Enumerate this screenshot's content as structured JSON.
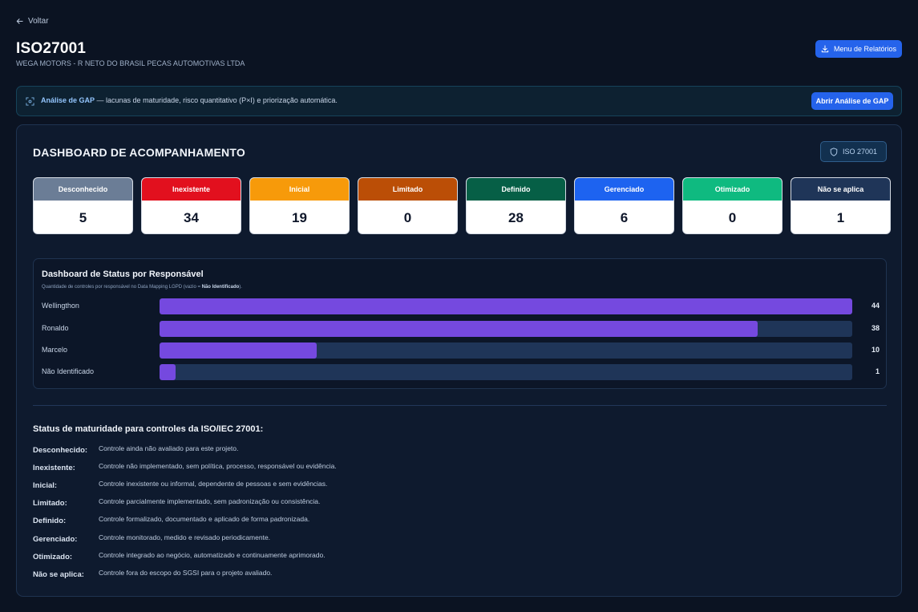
{
  "nav": {
    "back_label": "Voltar"
  },
  "header": {
    "title": "ISO27001",
    "subtitle": "WEGA MOTORS - R NETO DO BRASIL PECAS AUTOMOTIVAS LTDA",
    "report_button": "Menu de Relatórios"
  },
  "gap_banner": {
    "label": "Análise de GAP",
    "text": " — lacunas de maturidade, risco quantitativo (P×I) e priorização automática.",
    "button": "Abrir Análise de GAP"
  },
  "dashboard": {
    "title": "DASHBOARD DE ACOMPANHAMENTO",
    "badge": "ISO 27001",
    "cards": [
      {
        "label": "Desconhecido",
        "value": "5",
        "color": "#6b7d96"
      },
      {
        "label": "Inexistente",
        "value": "34",
        "color": "#e2101e"
      },
      {
        "label": "Inicial",
        "value": "19",
        "color": "#f79a0a"
      },
      {
        "label": "Limitado",
        "value": "0",
        "color": "#bb4e06"
      },
      {
        "label": "Definido",
        "value": "28",
        "color": "#065f46"
      },
      {
        "label": "Gerenciado",
        "value": "6",
        "color": "#1d63f0"
      },
      {
        "label": "Otimizado",
        "value": "0",
        "color": "#0fba80"
      },
      {
        "label": "Não se aplica",
        "value": "1",
        "color": "#1f3558"
      }
    ]
  },
  "responsible": {
    "title": "Dashboard de Status por Responsável",
    "subtitle_prefix": "Quantidade de controles por responsável no Data Mapping LGPD (vazio = ",
    "subtitle_bold": "Não Identificado",
    "subtitle_suffix": ").",
    "max": 44,
    "rows": [
      {
        "name": "Wellingthon",
        "count": 44
      },
      {
        "name": "Ronaldo",
        "count": 38
      },
      {
        "name": "Marcelo",
        "count": 10
      },
      {
        "name": "Não Identificado",
        "count": 1
      }
    ]
  },
  "maturity": {
    "title": "Status de maturidade para controles da ISO/IEC 27001:",
    "items": [
      {
        "key": "Desconhecido:",
        "desc": "Controle ainda não avaliado para este projeto."
      },
      {
        "key": "Inexistente:",
        "desc": "Controle não implementado, sem política, processo, responsável ou evidência."
      },
      {
        "key": "Inicial:",
        "desc": "Controle inexistente ou informal, dependente de pessoas e sem evidências."
      },
      {
        "key": "Limitado:",
        "desc": "Controle parcialmente implementado, sem padronização ou consistência."
      },
      {
        "key": "Definido:",
        "desc": "Controle formalizado, documentado e aplicado de forma padronizada."
      },
      {
        "key": "Gerenciado:",
        "desc": "Controle monitorado, medido e revisado periodicamente."
      },
      {
        "key": "Otimizado:",
        "desc": "Controle integrado ao negócio, automatizado e continuamente aprimorado."
      },
      {
        "key": "Não se aplica:",
        "desc": "Controle fora do escopo do SGSI para o projeto avaliado."
      }
    ]
  }
}
